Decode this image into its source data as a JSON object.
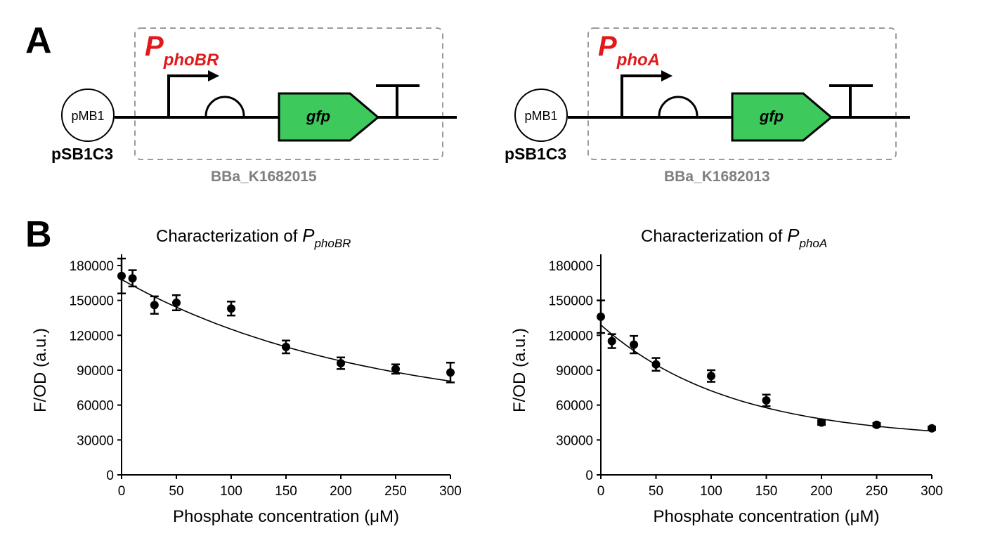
{
  "panels": {
    "a_label": "A",
    "b_label": "B"
  },
  "constructs": [
    {
      "promoter_p": "P",
      "promoter_sub": "phoBR",
      "plasmid_origin": "pMB1",
      "vector": "pSB1C3",
      "gene": "gfp",
      "part_id": "BBa_K1682015"
    },
    {
      "promoter_p": "P",
      "promoter_sub": "phoA",
      "plasmid_origin": "pMB1",
      "vector": "pSB1C3",
      "gene": "gfp",
      "part_id": "BBa_K1682013"
    }
  ],
  "colors": {
    "promoter_red": "#e0191b",
    "gene_green": "#3ec95c",
    "dashed_box": "#9a9a9a",
    "part_label_gray": "#7f7f7f"
  },
  "chart_data": [
    {
      "type": "scatter",
      "title": "Characterization of ",
      "title_italic": "P",
      "title_sub": "phoBR",
      "xlabel": "Phosphate concentration (μM)",
      "ylabel": "F/OD (a.u.)",
      "xlim": [
        0,
        300
      ],
      "ylim": [
        0,
        180000
      ],
      "xticks": [
        0,
        50,
        100,
        150,
        200,
        250,
        300
      ],
      "yticks": [
        0,
        30000,
        60000,
        90000,
        120000,
        150000,
        180000
      ],
      "grid": false,
      "points": [
        {
          "x": 0,
          "y": 171000,
          "err": 15000
        },
        {
          "x": 10,
          "y": 169000,
          "err": 7000
        },
        {
          "x": 30,
          "y": 146000,
          "err": 7500
        },
        {
          "x": 50,
          "y": 148000,
          "err": 6500
        },
        {
          "x": 100,
          "y": 143000,
          "err": 6000
        },
        {
          "x": 150,
          "y": 110000,
          "err": 5500
        },
        {
          "x": 200,
          "y": 96000,
          "err": 5000
        },
        {
          "x": 250,
          "y": 91000,
          "err": 4000
        },
        {
          "x": 300,
          "y": 88000,
          "err": 8500
        }
      ],
      "fit": {
        "plateau": 50000,
        "span": 118000,
        "k": 0.0045
      }
    },
    {
      "type": "scatter",
      "title": "Characterization of ",
      "title_italic": "P",
      "title_sub": "phoA",
      "xlabel": "Phosphate concentration (μM)",
      "ylabel": "F/OD (a.u.)",
      "xlim": [
        0,
        300
      ],
      "ylim": [
        0,
        180000
      ],
      "xticks": [
        0,
        50,
        100,
        150,
        200,
        250,
        300
      ],
      "yticks": [
        0,
        30000,
        60000,
        90000,
        120000,
        150000,
        180000
      ],
      "grid": false,
      "points": [
        {
          "x": 0,
          "y": 136000,
          "err": 14000
        },
        {
          "x": 10,
          "y": 115000,
          "err": 6000
        },
        {
          "x": 30,
          "y": 112000,
          "err": 7500
        },
        {
          "x": 50,
          "y": 95000,
          "err": 5500
        },
        {
          "x": 100,
          "y": 85000,
          "err": 5000
        },
        {
          "x": 150,
          "y": 64000,
          "err": 5000
        },
        {
          "x": 200,
          "y": 45000,
          "err": 2000
        },
        {
          "x": 250,
          "y": 43000,
          "err": 1500
        },
        {
          "x": 300,
          "y": 40000,
          "err": 1500
        }
      ],
      "fit": {
        "plateau": 30000,
        "span": 99000,
        "k": 0.0085
      }
    }
  ]
}
